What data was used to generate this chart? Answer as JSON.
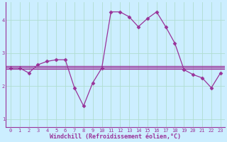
{
  "xlabel": "Windchill (Refroidissement éolien,°C)",
  "bg_color": "#cceeff",
  "grid_color": "#b0ddd0",
  "line_color": "#993399",
  "xlim": [
    -0.5,
    23.5
  ],
  "ylim": [
    0.75,
    4.55
  ],
  "yticks": [
    1,
    2,
    3,
    4
  ],
  "xticks": [
    0,
    1,
    2,
    3,
    4,
    5,
    6,
    7,
    8,
    9,
    10,
    11,
    12,
    13,
    14,
    15,
    16,
    17,
    18,
    19,
    20,
    21,
    22,
    23
  ],
  "line1_x": [
    0,
    1,
    2,
    3,
    4,
    5,
    6,
    7,
    8,
    9,
    10,
    11,
    12,
    13,
    14,
    15,
    16,
    17,
    18,
    19,
    20,
    21,
    22,
    23
  ],
  "line1_y": [
    2.55,
    2.55,
    2.4,
    2.65,
    2.75,
    2.8,
    2.8,
    1.95,
    1.4,
    2.1,
    2.55,
    4.25,
    4.25,
    4.1,
    3.8,
    4.05,
    4.25,
    3.8,
    3.3,
    2.5,
    2.35,
    2.25,
    1.95,
    2.4
  ],
  "line2_y": 2.52,
  "line3_y": 2.56,
  "line4_y": 2.6,
  "marker": "D",
  "markersize": 2.5,
  "linewidth": 0.9,
  "tick_fontsize": 5,
  "label_fontsize": 6,
  "spine_color": "#993399"
}
